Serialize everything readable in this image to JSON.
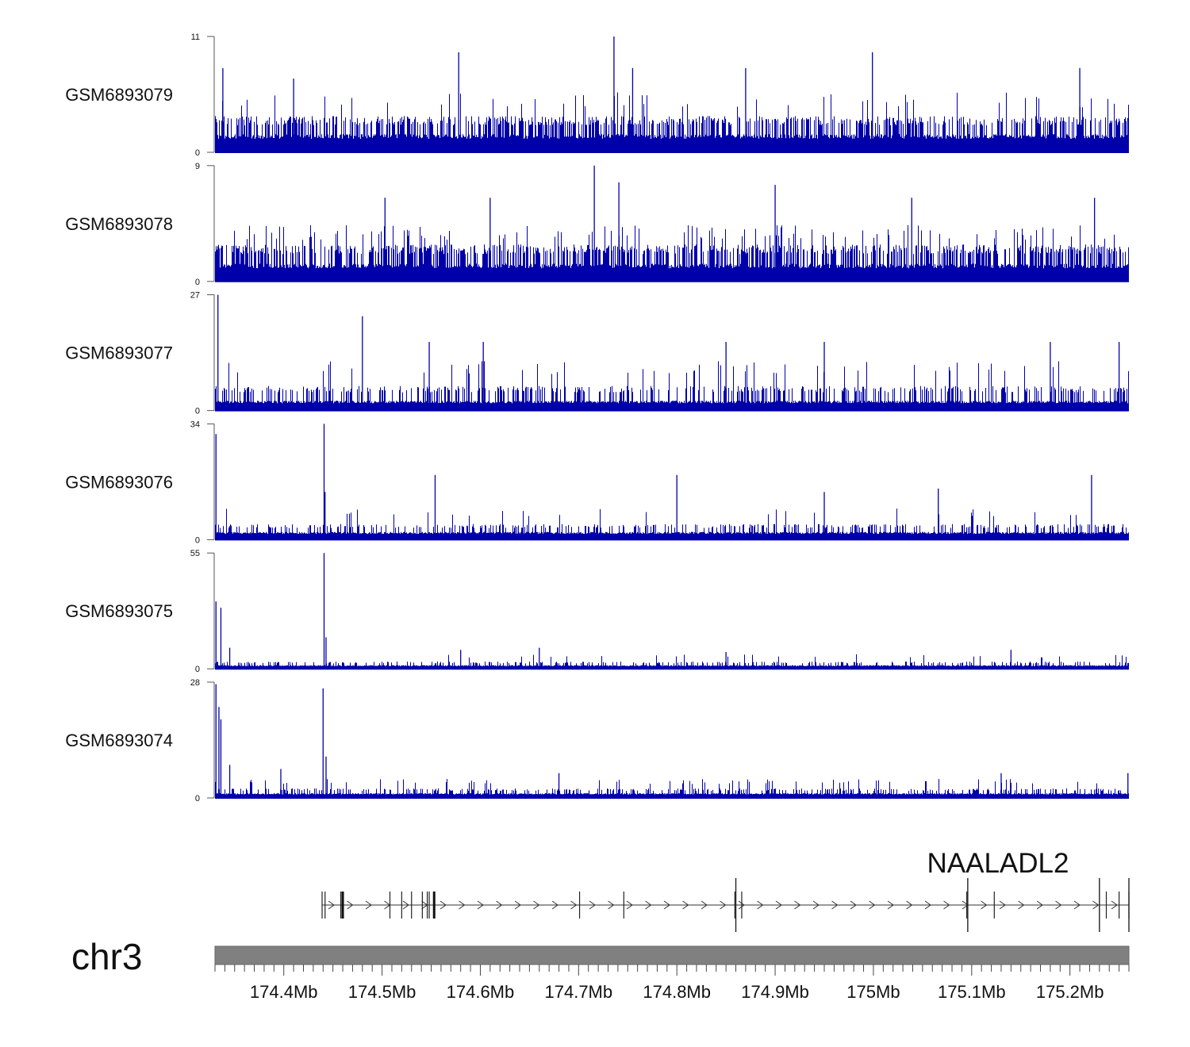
{
  "chart_data": {
    "type": "area",
    "title": "",
    "chromosome": "chr3",
    "x_range_mb": [
      174.33,
      175.26
    ],
    "x_ticks": [
      {
        "value": 174.4,
        "label": "174.4Mb"
      },
      {
        "value": 174.5,
        "label": "174.5Mb"
      },
      {
        "value": 174.6,
        "label": "174.6Mb"
      },
      {
        "value": 174.7,
        "label": "174.7Mb"
      },
      {
        "value": 174.8,
        "label": "174.8Mb"
      },
      {
        "value": 174.9,
        "label": "174.9Mb"
      },
      {
        "value": 175.0,
        "label": "175Mb"
      },
      {
        "value": 175.1,
        "label": "175.1Mb"
      },
      {
        "value": 175.2,
        "label": "175.2Mb"
      }
    ],
    "series_color": "#0000aa",
    "tracks": [
      {
        "name": "GSM6893079",
        "ymax": 11,
        "ymin": 0,
        "ymax_label": "11",
        "ymin_label": "0",
        "baseline": 1.5,
        "level_values": [
          1.5,
          3,
          5
        ],
        "level_probs": [
          0.5,
          0.45,
          0.05
        ],
        "peaks": [
          [
            174.338,
            8
          ],
          [
            174.41,
            7
          ],
          [
            174.578,
            9.5
          ],
          [
            174.736,
            11
          ],
          [
            174.999,
            9.5
          ],
          [
            174.755,
            8
          ],
          [
            175.21,
            8
          ],
          [
            174.87,
            8
          ]
        ]
      },
      {
        "name": "GSM6893078",
        "ymax": 9,
        "ymin": 0,
        "ymax_label": "9",
        "ymin_label": "0",
        "baseline": 1.2,
        "level_values": [
          1.2,
          2.5,
          3.8
        ],
        "level_probs": [
          0.45,
          0.45,
          0.1
        ],
        "peaks": [
          [
            174.716,
            9
          ],
          [
            174.741,
            7.7
          ],
          [
            174.503,
            6.5
          ],
          [
            175.039,
            6.5
          ],
          [
            174.9,
            7.5
          ],
          [
            174.61,
            6.5
          ],
          [
            175.225,
            6.5
          ]
        ]
      },
      {
        "name": "GSM6893077",
        "ymax": 27,
        "ymin": 0,
        "ymax_label": "27",
        "ymin_label": "0",
        "baseline": 2,
        "level_values": [
          2,
          5,
          10
        ],
        "level_probs": [
          0.65,
          0.3,
          0.05
        ],
        "peaks": [
          [
            174.333,
            27
          ],
          [
            174.48,
            22
          ],
          [
            174.548,
            16
          ],
          [
            174.603,
            16
          ],
          [
            174.85,
            16
          ],
          [
            174.95,
            16
          ],
          [
            175.25,
            16
          ],
          [
            175.18,
            16
          ]
        ]
      },
      {
        "name": "GSM6893076",
        "ymax": 34,
        "ymin": 0,
        "ymax_label": "34",
        "ymin_label": "0",
        "baseline": 2,
        "level_values": [
          2,
          4,
          8
        ],
        "level_probs": [
          0.7,
          0.27,
          0.03
        ],
        "peaks": [
          [
            174.331,
            31
          ],
          [
            174.441,
            34
          ],
          [
            174.442,
            14
          ],
          [
            174.554,
            19
          ],
          [
            174.8,
            19
          ],
          [
            175.222,
            19
          ],
          [
            174.95,
            14
          ],
          [
            175.066,
            15
          ]
        ]
      },
      {
        "name": "GSM6893075",
        "ymax": 55,
        "ymin": 0,
        "ymax_label": "55",
        "ymin_label": "0",
        "baseline": 1.5,
        "level_values": [
          1.5,
          3,
          6
        ],
        "level_probs": [
          0.75,
          0.22,
          0.03
        ],
        "peaks": [
          [
            174.331,
            32
          ],
          [
            174.336,
            29
          ],
          [
            174.345,
            10
          ],
          [
            174.441,
            55
          ],
          [
            174.443,
            15
          ],
          [
            174.66,
            10
          ],
          [
            175.14,
            9
          ],
          [
            174.58,
            9
          ],
          [
            174.85,
            8
          ]
        ]
      },
      {
        "name": "GSM6893074",
        "ymax": 28,
        "ymin": 0,
        "ymax_label": "28",
        "ymin_label": "0",
        "baseline": 1,
        "level_values": [
          1,
          2,
          4
        ],
        "level_probs": [
          0.7,
          0.25,
          0.05
        ],
        "peaks": [
          [
            174.331,
            27.5
          ],
          [
            174.334,
            22
          ],
          [
            174.336,
            19
          ],
          [
            174.345,
            8
          ],
          [
            174.397,
            7
          ],
          [
            174.44,
            26.5
          ],
          [
            174.443,
            10
          ],
          [
            174.68,
            6
          ],
          [
            175.259,
            6
          ],
          [
            175.13,
            6
          ]
        ]
      }
    ],
    "gene": {
      "name": "NAALADL2",
      "strand": "+",
      "start_mb": 174.439,
      "end_mb": 175.26,
      "exons_mb": [
        174.439,
        174.442,
        174.458,
        174.46,
        174.508,
        174.52,
        174.53,
        174.541,
        174.546,
        174.548,
        174.553,
        174.701,
        174.746,
        174.859,
        174.866,
        175.095,
        175.123,
        175.237,
        175.25,
        175.26
      ],
      "tall_exons_mb": [
        174.86,
        175.096,
        175.23,
        175.26
      ],
      "thick_exons_mb": [
        174.46,
        174.553
      ]
    }
  }
}
